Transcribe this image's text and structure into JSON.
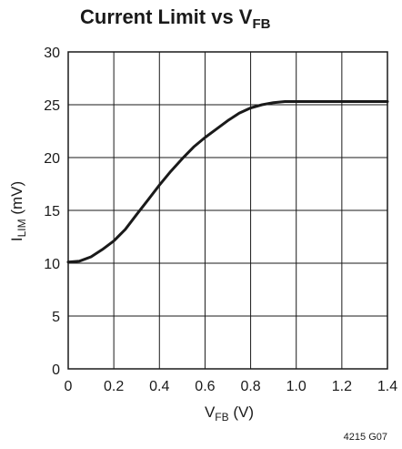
{
  "chart_data": {
    "type": "line",
    "title": {
      "main": "Current Limit vs V",
      "sub": "FB"
    },
    "xlabel": {
      "main": "V",
      "sub": "FB",
      "rest": " (V)"
    },
    "ylabel": {
      "main": "I",
      "sub": "LIM",
      "rest": " (mV)"
    },
    "xlim": [
      0,
      1.4
    ],
    "ylim": [
      0,
      30
    ],
    "x_ticks": [
      "0",
      "0.2",
      "0.4",
      "0.6",
      "0.8",
      "1.0",
      "1.2",
      "1.4"
    ],
    "y_ticks": [
      "0",
      "5",
      "10",
      "15",
      "20",
      "25",
      "30"
    ],
    "x_tick_values": [
      0,
      0.2,
      0.4,
      0.6,
      0.8,
      1.0,
      1.2,
      1.4
    ],
    "y_tick_values": [
      0,
      5,
      10,
      15,
      20,
      25,
      30
    ],
    "grid": true,
    "series": [
      {
        "x": [
          0,
          0.05,
          0.1,
          0.15,
          0.2,
          0.25,
          0.3,
          0.35,
          0.4,
          0.45,
          0.5,
          0.55,
          0.6,
          0.65,
          0.7,
          0.75,
          0.8,
          0.85,
          0.9,
          0.95,
          1.0,
          1.05,
          1.1,
          1.2,
          1.3,
          1.4
        ],
        "y": [
          10.1,
          10.2,
          10.6,
          11.3,
          12.1,
          13.2,
          14.6,
          16.0,
          17.4,
          18.7,
          19.9,
          21.0,
          21.9,
          22.7,
          23.5,
          24.2,
          24.7,
          25.0,
          25.2,
          25.3,
          25.3,
          25.3,
          25.3,
          25.3,
          25.3,
          25.3
        ]
      }
    ],
    "line_color": "#1a1a1a",
    "grid_color": "#1a1a1a"
  },
  "footer_code": "4215 G07"
}
